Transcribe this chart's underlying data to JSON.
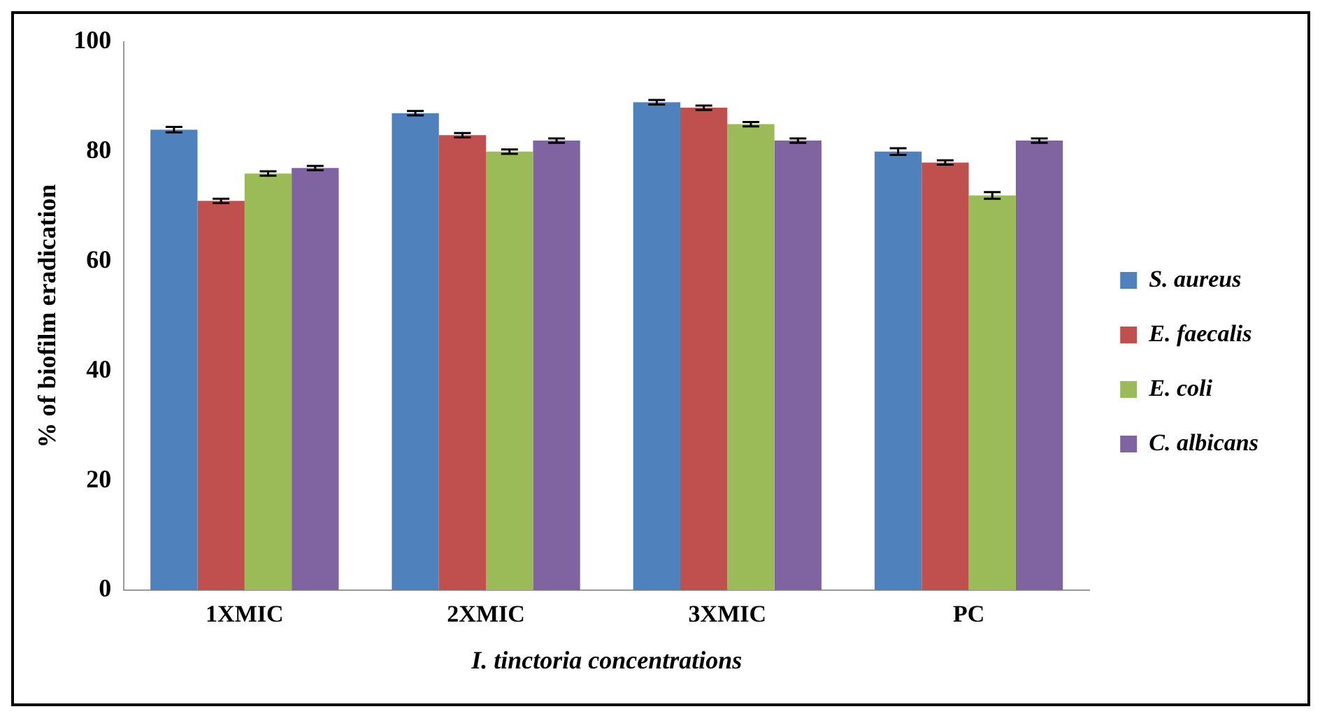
{
  "chart_data": {
    "type": "bar",
    "xlabel": "I. tinctoria concentrations",
    "ylabel": "% of biofilm eradication",
    "categories": [
      "1XMIC",
      "2XMIC",
      "3XMIC",
      "PC"
    ],
    "series": [
      {
        "name": "S. aureus",
        "color": "#4f81bd",
        "values": [
          84,
          87,
          89,
          80
        ],
        "errors": [
          0.5,
          0.4,
          0.4,
          0.6
        ]
      },
      {
        "name": "E. faecalis",
        "color": "#c0504d",
        "values": [
          71,
          83,
          88,
          78
        ],
        "errors": [
          0.4,
          0.4,
          0.4,
          0.4
        ]
      },
      {
        "name": "E. coli",
        "color": "#9bbb59",
        "values": [
          76,
          80,
          85,
          72
        ],
        "errors": [
          0.4,
          0.4,
          0.4,
          0.6
        ]
      },
      {
        "name": "C. albicans",
        "color": "#8064a2",
        "values": [
          77,
          82,
          82,
          82
        ],
        "errors": [
          0.4,
          0.4,
          0.4,
          0.4
        ]
      }
    ],
    "ylim": [
      0,
      100
    ],
    "yticks": [
      0,
      20,
      40,
      60,
      80,
      100
    ],
    "grid": false,
    "legend": "right"
  }
}
